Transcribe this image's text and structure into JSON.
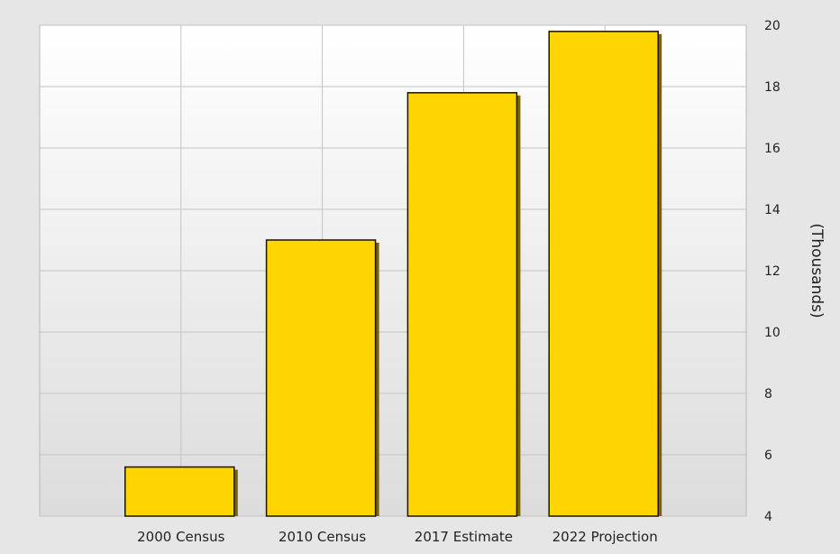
{
  "chart_data": {
    "type": "bar",
    "categories": [
      "2000 Census",
      "2010 Census",
      "2017 Estimate",
      "2022 Projection"
    ],
    "values": [
      5.6,
      13.0,
      17.8,
      19.8
    ],
    "title": "",
    "xlabel": "",
    "ylabel": "(Thousands)",
    "ylim": [
      4,
      20
    ],
    "yticks": [
      4,
      6,
      8,
      10,
      12,
      14,
      16,
      18,
      20
    ],
    "y_axis_position": "right",
    "grid": true,
    "legend": "none",
    "colors": {
      "bar_fill": "#ffd500",
      "bar_edge": "#1a1400",
      "bar_shadow": "#7a6300",
      "plot_top": "#ffffff",
      "plot_bottom": "#dcdcdc",
      "grid": "#c4c4c4",
      "page_background": "#e6e6e6"
    }
  }
}
